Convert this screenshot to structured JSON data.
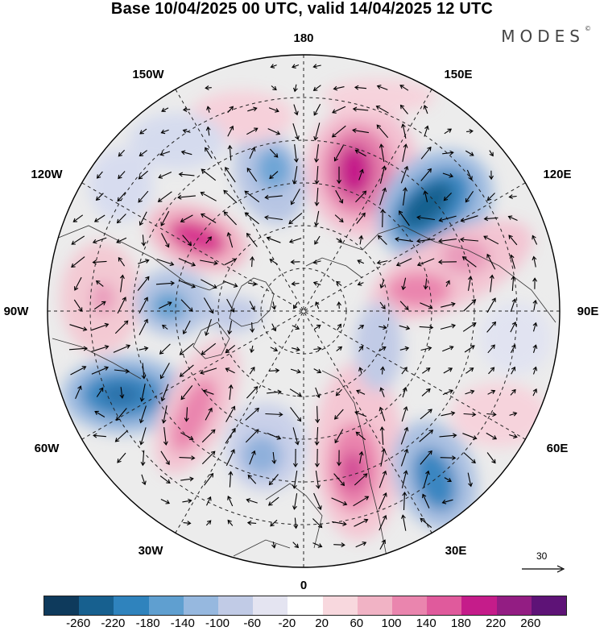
{
  "title": "Base 10/04/2025 00 UTC, valid 14/04/2025 12 UTC",
  "brand": "MODES",
  "brand_mark": "©",
  "longitude_labels": {
    "top": "180",
    "top_left": "150W",
    "top_right": "150E",
    "upper_left": "120W",
    "upper_right": "120E",
    "left": "90W",
    "right": "90E",
    "lower_left": "60W",
    "lower_right": "60E",
    "bottom_left": "30W",
    "bottom_right": "30E",
    "bottom": "0"
  },
  "reference_vector": "30",
  "colorbar": {
    "colors": [
      "#0e3a5c",
      "#17608f",
      "#2f83bd",
      "#5f9fd0",
      "#96b8df",
      "#c1cbe6",
      "#e4e4f1",
      "#ffffff",
      "#f8d8de",
      "#f1b3c5",
      "#ea85ae",
      "#e05a9c",
      "#c51c8a",
      "#931d83",
      "#5e1377"
    ],
    "labels": [
      "-260",
      "-220",
      "-180",
      "-140",
      "-100",
      "-60",
      "-20",
      "20",
      "60",
      "100",
      "140",
      "180",
      "220",
      "260"
    ]
  },
  "anomaly_centers": [
    {
      "value": 200,
      "location": "near 150E-120E ring"
    },
    {
      "value": -200,
      "location": "near 120E-105E"
    },
    {
      "value": 160,
      "location": "near 135W"
    },
    {
      "value": -140,
      "location": "near 85W"
    },
    {
      "value": -180,
      "location": "near 65W"
    },
    {
      "value": 120,
      "location": "near 45W"
    },
    {
      "value": 140,
      "location": "near 15E"
    },
    {
      "value": -150,
      "location": "near 40E"
    },
    {
      "value": 140,
      "location": "near 100E"
    },
    {
      "value": -100,
      "location": "near 170W"
    },
    {
      "value": 80,
      "location": "near 100W"
    }
  ]
}
